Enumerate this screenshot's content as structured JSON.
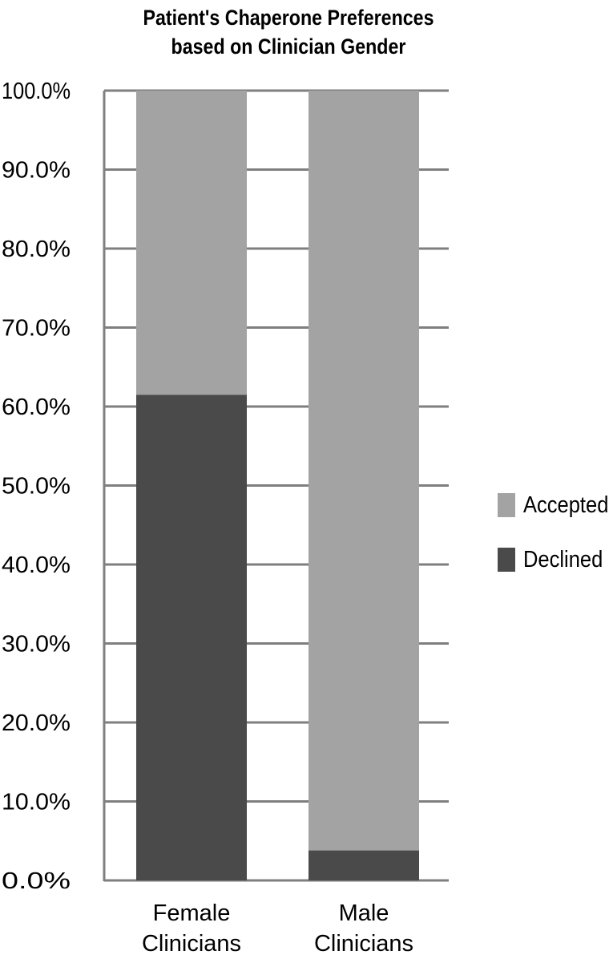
{
  "chart_data": {
    "type": "bar",
    "stacked": true,
    "title": [
      "Patient's Chaperone Preferences",
      "based on Clinician Gender"
    ],
    "categories": [
      [
        "Female",
        "Clinicians"
      ],
      [
        "Male",
        "Clinicians"
      ]
    ],
    "series": [
      {
        "name": "Declined",
        "color": "#4a4a4a",
        "values": [
          61.5,
          3.8
        ]
      },
      {
        "name": "Accepted",
        "color": "#a3a3a3",
        "values": [
          38.5,
          96.2
        ]
      }
    ],
    "y_ticks": [
      "0.0%",
      "10.0%",
      "20.0%",
      "30.0%",
      "40.0%",
      "50.0%",
      "60.0%",
      "70.0%",
      "80.0%",
      "90.0%",
      "100.0%"
    ],
    "ylim": [
      0,
      100
    ],
    "grid": true,
    "legend": {
      "placement": "right",
      "order": [
        "Accepted",
        "Declined"
      ]
    },
    "colors": {
      "grid": "#7f7f7f",
      "axis": "#7f7f7f"
    }
  }
}
